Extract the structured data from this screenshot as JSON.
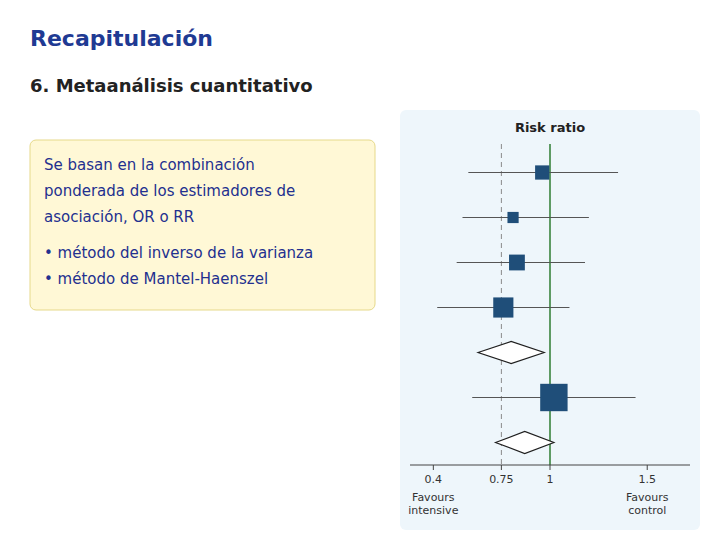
{
  "chart_data": {
    "type": "forest",
    "title": "Recapitulación",
    "subtitle": "6.  Metaanálisis cuantitativo",
    "xlabel": "Risk ratio",
    "xlim": [
      0.28,
      1.72
    ],
    "xticks": [
      0.4,
      0.75,
      1,
      1.5
    ],
    "grid": false,
    "reference_lines": [
      {
        "value": 1.0,
        "line_style": "solid"
      },
      {
        "value": 0.75,
        "line_style": "dashed"
      }
    ],
    "series": [
      {
        "type": "square",
        "values": [
          0.96,
          0.81,
          0.83,
          0.76
        ],
        "ci_low": [
          0.58,
          0.55,
          0.52,
          0.42
        ],
        "ci_high": [
          1.35,
          1.2,
          1.18,
          1.1
        ],
        "sizes": [
          130,
          80,
          160,
          260
        ]
      },
      {
        "type": "diamond",
        "values": [
          0.8
        ],
        "ci_low": [
          0.63
        ],
        "ci_high": [
          0.97
        ]
      },
      {
        "type": "square",
        "values": [
          1.02
        ],
        "ci_low": [
          0.6
        ],
        "ci_high": [
          1.44
        ],
        "sizes": [
          480
        ]
      },
      {
        "type": "diamond",
        "values": [
          0.87
        ],
        "ci_low": [
          0.72
        ],
        "ci_high": [
          1.02
        ]
      }
    ],
    "annotations": [
      {
        "text": "Se basan en la combinación"
      },
      {
        "text": "ponderada de los estimadores de"
      },
      {
        "text": "asociación, OR o RR"
      },
      {
        "text": "• método del inverso de la varianza"
      },
      {
        "text": "• método de Mantel-Haenszel"
      },
      {
        "text": "Favours\nintensive",
        "x": 0.4
      },
      {
        "text": "Favours\ncontrol",
        "x": 1.5
      }
    ]
  }
}
